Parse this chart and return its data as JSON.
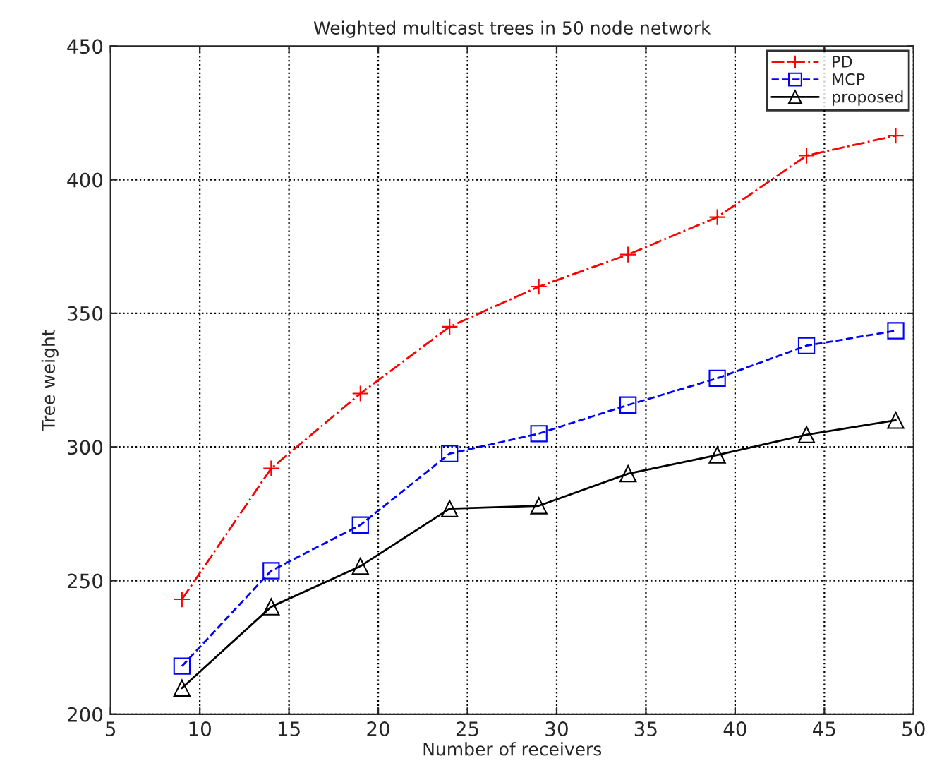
{
  "chart_data": {
    "type": "line",
    "title": "Weighted multicast trees in 50 node network",
    "xlabel": "Number of receivers",
    "ylabel": "Tree weight",
    "x": [
      9,
      14,
      19,
      24,
      29,
      34,
      39,
      44,
      49
    ],
    "series": [
      {
        "name": "PD",
        "color": "#ff0000",
        "values": [
          243,
          292,
          320,
          345,
          360,
          372,
          386,
          409,
          416.5
        ],
        "marker": "cross",
        "line_style": "dashdot"
      },
      {
        "name": "MCP",
        "color": "#0000ff",
        "values": [
          218,
          253.7,
          270.8,
          297.5,
          305,
          315.7,
          325.7,
          337.9,
          343.5
        ],
        "marker": "square",
        "line_style": "dashed"
      },
      {
        "name": "proposed",
        "color": "#000000",
        "values": [
          209.8,
          240.2,
          255.4,
          276.9,
          278,
          290,
          297,
          304.6,
          310
        ],
        "marker": "triangle",
        "line_style": "solid"
      }
    ],
    "xlim": [
      5,
      50
    ],
    "xticks": [
      5,
      10,
      15,
      20,
      25,
      30,
      35,
      40,
      45,
      50
    ],
    "ylim": [
      200,
      450
    ],
    "yticks": [
      200,
      250,
      300,
      350,
      400,
      450
    ],
    "grid": true,
    "legend": "top right"
  }
}
